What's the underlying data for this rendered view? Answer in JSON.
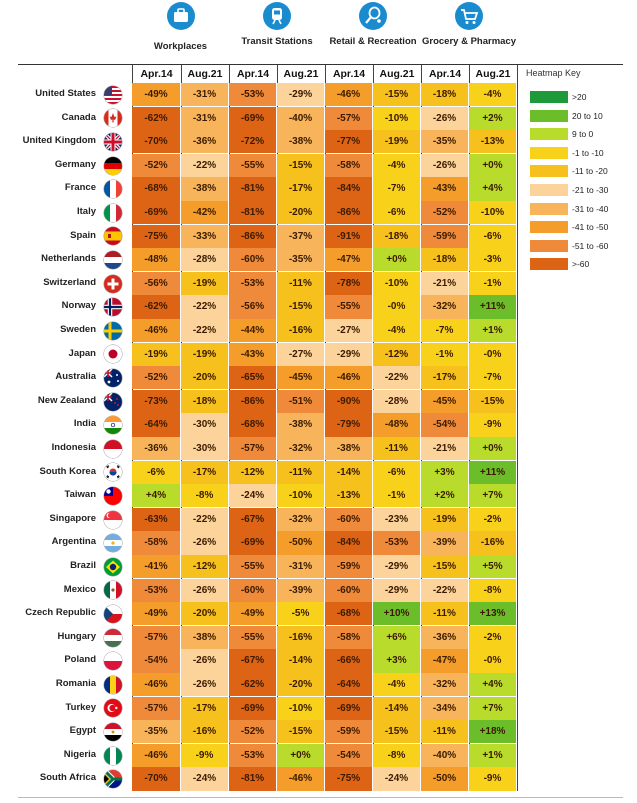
{
  "categories": [
    {
      "key": "workplaces",
      "label": "Workplaces",
      "icon": "briefcase-icon"
    },
    {
      "key": "transit",
      "label": "Transit Stations",
      "icon": "train-icon"
    },
    {
      "key": "retail",
      "label": "Retail & Recreation",
      "icon": "tennis-racket-icon"
    },
    {
      "key": "grocery",
      "label": "Grocery & Pharmacy",
      "icon": "shopping-cart-icon"
    }
  ],
  "column_headers": [
    "Apr.14",
    "Aug.21"
  ],
  "heatmap_key": {
    "title": "Heatmap Key",
    "items": [
      {
        "label": ">20",
        "color": "#1e9a3a"
      },
      {
        "label": "20 to 10",
        "color": "#6cbd2a"
      },
      {
        "label": "9 to 0",
        "color": "#b9dc2c"
      },
      {
        "label": "-1 to -10",
        "color": "#f8d21a"
      },
      {
        "label": "-11 to -20",
        "color": "#f6c11c"
      },
      {
        "label": "-21 to -30",
        "color": "#fcd39a"
      },
      {
        "label": "-31 to -40",
        "color": "#f7b45a"
      },
      {
        "label": "-41 to -50",
        "color": "#f59d2a"
      },
      {
        "label": "-51 to -60",
        "color": "#ef8a3a"
      },
      {
        "label": ">-60",
        "color": "#de6415"
      }
    ]
  },
  "chart_data": {
    "type": "heatmap",
    "title": "",
    "columns": [
      "Workplaces Apr.14",
      "Workplaces Aug.21",
      "Transit Stations Apr.14",
      "Transit Stations Aug.21",
      "Retail & Recreation Apr.14",
      "Retail & Recreation Aug.21",
      "Grocery & Pharmacy Apr.14",
      "Grocery & Pharmacy Aug.21"
    ],
    "rows": [
      {
        "country": "United States",
        "flag": "us-flag-icon",
        "values": [
          "-49%",
          "-31%",
          "-53%",
          "-29%",
          "-46%",
          "-15%",
          "-18%",
          "-4%"
        ]
      },
      {
        "country": "Canada",
        "flag": "canada-flag-icon",
        "values": [
          "-62%",
          "-31%",
          "-69%",
          "-40%",
          "-57%",
          "-10%",
          "-26%",
          "+2%"
        ]
      },
      {
        "country": "United Kingdom",
        "flag": "uk-flag-icon",
        "values": [
          "-70%",
          "-36%",
          "-72%",
          "-38%",
          "-77%",
          "-19%",
          "-35%",
          "-13%"
        ]
      },
      {
        "country": "Germany",
        "flag": "germany-flag-icon",
        "values": [
          "-52%",
          "-22%",
          "-55%",
          "-15%",
          "-58%",
          "-4%",
          "-26%",
          "+0%"
        ]
      },
      {
        "country": "France",
        "flag": "france-flag-icon",
        "values": [
          "-68%",
          "-38%",
          "-81%",
          "-17%",
          "-84%",
          "-7%",
          "-43%",
          "+4%"
        ]
      },
      {
        "country": "Italy",
        "flag": "italy-flag-icon",
        "values": [
          "-69%",
          "-42%",
          "-81%",
          "-20%",
          "-86%",
          "-6%",
          "-52%",
          "-10%"
        ]
      },
      {
        "country": "Spain",
        "flag": "spain-flag-icon",
        "values": [
          "-75%",
          "-33%",
          "-86%",
          "-37%",
          "-91%",
          "-18%",
          "-59%",
          "-6%"
        ]
      },
      {
        "country": "Netherlands",
        "flag": "netherlands-flag-icon",
        "values": [
          "-48%",
          "-28%",
          "-60%",
          "-35%",
          "-47%",
          "+0%",
          "-18%",
          "-3%"
        ]
      },
      {
        "country": "Switzerland",
        "flag": "switzerland-flag-icon",
        "values": [
          "-56%",
          "-19%",
          "-53%",
          "-11%",
          "-78%",
          "-10%",
          "-21%",
          "-1%"
        ]
      },
      {
        "country": "Norway",
        "flag": "norway-flag-icon",
        "values": [
          "-62%",
          "-22%",
          "-56%",
          "-15%",
          "-55%",
          "-0%",
          "-32%",
          "+11%"
        ]
      },
      {
        "country": "Sweden",
        "flag": "sweden-flag-icon",
        "values": [
          "-46%",
          "-22%",
          "-44%",
          "-16%",
          "-27%",
          "-4%",
          "-7%",
          "+1%"
        ]
      },
      {
        "country": "Japan",
        "flag": "japan-flag-icon",
        "values": [
          "-19%",
          "-19%",
          "-43%",
          "-27%",
          "-29%",
          "-12%",
          "-1%",
          "-0%"
        ]
      },
      {
        "country": "Australia",
        "flag": "australia-flag-icon",
        "values": [
          "-52%",
          "-20%",
          "-65%",
          "-45%",
          "-46%",
          "-22%",
          "-17%",
          "-7%"
        ]
      },
      {
        "country": "New Zealand",
        "flag": "new-zealand-flag-icon",
        "values": [
          "-73%",
          "-18%",
          "-86%",
          "-51%",
          "-90%",
          "-28%",
          "-45%",
          "-15%"
        ]
      },
      {
        "country": "India",
        "flag": "india-flag-icon",
        "values": [
          "-64%",
          "-30%",
          "-68%",
          "-38%",
          "-79%",
          "-48%",
          "-54%",
          "-9%"
        ]
      },
      {
        "country": "Indonesia",
        "flag": "indonesia-flag-icon",
        "values": [
          "-36%",
          "-30%",
          "-57%",
          "-32%",
          "-38%",
          "-11%",
          "-21%",
          "+0%"
        ]
      },
      {
        "country": "South Korea",
        "flag": "south-korea-flag-icon",
        "values": [
          "-6%",
          "-17%",
          "-12%",
          "-11%",
          "-14%",
          "-6%",
          "+3%",
          "+11%"
        ]
      },
      {
        "country": "Taiwan",
        "flag": "taiwan-flag-icon",
        "values": [
          "+4%",
          "-8%",
          "-24%",
          "-10%",
          "-13%",
          "-1%",
          "+2%",
          "+7%"
        ]
      },
      {
        "country": "Singapore",
        "flag": "singapore-flag-icon",
        "values": [
          "-63%",
          "-22%",
          "-67%",
          "-32%",
          "-60%",
          "-23%",
          "-19%",
          "-2%"
        ]
      },
      {
        "country": "Argentina",
        "flag": "argentina-flag-icon",
        "values": [
          "-58%",
          "-26%",
          "-69%",
          "-50%",
          "-84%",
          "-53%",
          "-39%",
          "-16%"
        ]
      },
      {
        "country": "Brazil",
        "flag": "brazil-flag-icon",
        "values": [
          "-41%",
          "-12%",
          "-55%",
          "-31%",
          "-59%",
          "-29%",
          "-15%",
          "+5%"
        ]
      },
      {
        "country": "Mexico",
        "flag": "mexico-flag-icon",
        "values": [
          "-53%",
          "-26%",
          "-60%",
          "-39%",
          "-60%",
          "-29%",
          "-22%",
          "-8%"
        ]
      },
      {
        "country": "Czech Republic",
        "flag": "czech-flag-icon",
        "values": [
          "-49%",
          "-20%",
          "-49%",
          "-5%",
          "-68%",
          "+10%",
          "-11%",
          "+13%"
        ]
      },
      {
        "country": "Hungary",
        "flag": "hungary-flag-icon",
        "values": [
          "-57%",
          "-38%",
          "-55%",
          "-16%",
          "-58%",
          "+6%",
          "-36%",
          "-2%"
        ]
      },
      {
        "country": "Poland",
        "flag": "poland-flag-icon",
        "values": [
          "-54%",
          "-26%",
          "-67%",
          "-14%",
          "-66%",
          "+3%",
          "-47%",
          "-0%"
        ]
      },
      {
        "country": "Romania",
        "flag": "romania-flag-icon",
        "values": [
          "-46%",
          "-26%",
          "-62%",
          "-20%",
          "-64%",
          "-4%",
          "-32%",
          "+4%"
        ]
      },
      {
        "country": "Turkey",
        "flag": "turkey-flag-icon",
        "values": [
          "-57%",
          "-17%",
          "-69%",
          "-10%",
          "-69%",
          "-14%",
          "-34%",
          "+7%"
        ]
      },
      {
        "country": "Egypt",
        "flag": "egypt-flag-icon",
        "values": [
          "-35%",
          "-16%",
          "-52%",
          "-15%",
          "-59%",
          "-15%",
          "-11%",
          "+18%"
        ]
      },
      {
        "country": "Nigeria",
        "flag": "nigeria-flag-icon",
        "values": [
          "-46%",
          "-9%",
          "-53%",
          "+0%",
          "-54%",
          "-8%",
          "-40%",
          "+1%"
        ]
      },
      {
        "country": "South Africa",
        "flag": "south-africa-flag-icon",
        "values": [
          "-70%",
          "-24%",
          "-81%",
          "-46%",
          "-75%",
          "-24%",
          "-50%",
          "-9%"
        ]
      }
    ]
  }
}
